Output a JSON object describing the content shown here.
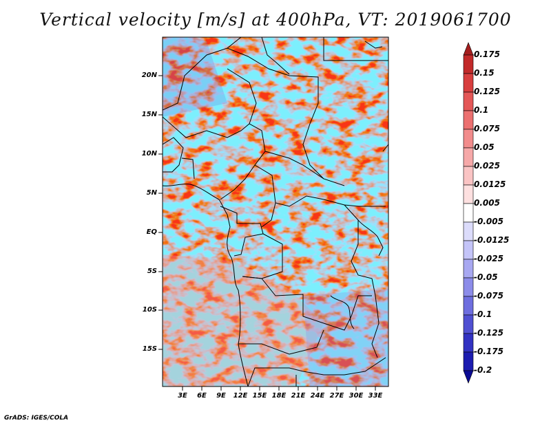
{
  "title": "Vertical velocity [m/s] at 400hPa, VT: 2019061700",
  "credit": "GrADS: IGES/COLA",
  "lat_labels": [
    "20N",
    "15N",
    "10N",
    "5N",
    "EQ",
    "5S",
    "10S",
    "15S"
  ],
  "lon_labels": [
    "3E",
    "6E",
    "9E",
    "12E",
    "15E",
    "18E",
    "21E",
    "24E",
    "27E",
    "30E",
    "33E"
  ],
  "colorbar": {
    "labels": [
      "0.175",
      "0.15",
      "0.125",
      "0.1",
      "0.075",
      "0.05",
      "0.025",
      "0.0125",
      "0.005",
      "-0.005",
      "-0.0125",
      "-0.025",
      "-0.05",
      "-0.075",
      "-0.1",
      "-0.125",
      "-0.175",
      "-0.2"
    ],
    "colors": [
      "#a51e1e",
      "#c22a2a",
      "#d83e3e",
      "#e45757",
      "#ec7070",
      "#f28c8c",
      "#f6a8a8",
      "#fac4c4",
      "#fde0e0",
      "#ffffff",
      "#dcdcfb",
      "#c4c4f8",
      "#a8a8f1",
      "#8c8ce9",
      "#6e6edf",
      "#5050d2",
      "#3232c2",
      "#1c1cb0",
      "#0a0a94"
    ]
  }
}
